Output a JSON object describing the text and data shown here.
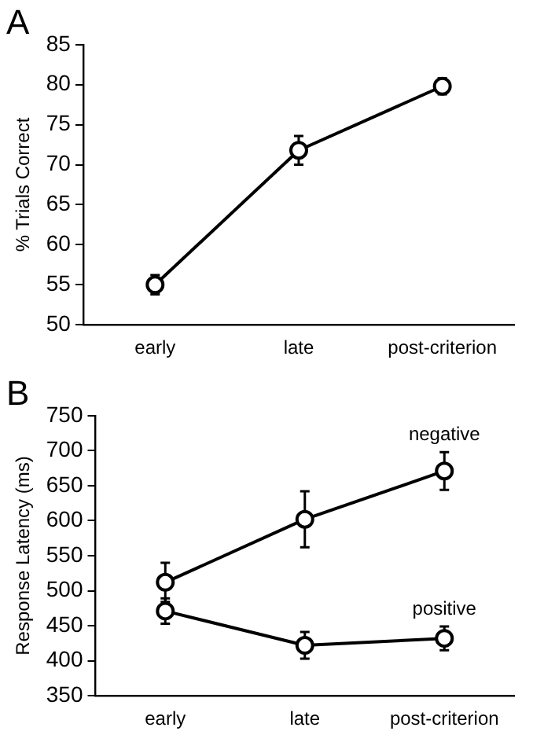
{
  "chart_data": [
    {
      "type": "line",
      "title": "A",
      "ylabel": "% Trials Correct",
      "categories": [
        "early",
        "late",
        "post-criterion"
      ],
      "series": [
        {
          "color": "#000000",
          "values": [
            55,
            71.8,
            79.8
          ],
          "errors": [
            1.2,
            1.8,
            1
          ]
        }
      ],
      "ylim": [
        50,
        85
      ],
      "yticks": [
        50,
        55,
        60,
        65,
        70,
        75,
        80,
        85
      ],
      "grid": false,
      "legend": false,
      "marker": "circle",
      "line_style": "solid"
    },
    {
      "type": "line",
      "title": "B",
      "ylabel": "Response Latency (ms)",
      "categories": [
        "early",
        "late",
        "post-criterion"
      ],
      "series": [
        {
          "name": "negative",
          "color": "#000000",
          "values": [
            512,
            602,
            671
          ],
          "errors": [
            28,
            40,
            27
          ]
        },
        {
          "name": "positive",
          "color": "#000000",
          "values": [
            471,
            422,
            432
          ],
          "errors": [
            18,
            19,
            17
          ]
        }
      ],
      "ylim": [
        350,
        750
      ],
      "yticks": [
        350,
        400,
        450,
        500,
        550,
        600,
        650,
        700,
        750
      ],
      "grid": false,
      "legend": false,
      "marker": "circle",
      "line_style": "solid"
    }
  ]
}
